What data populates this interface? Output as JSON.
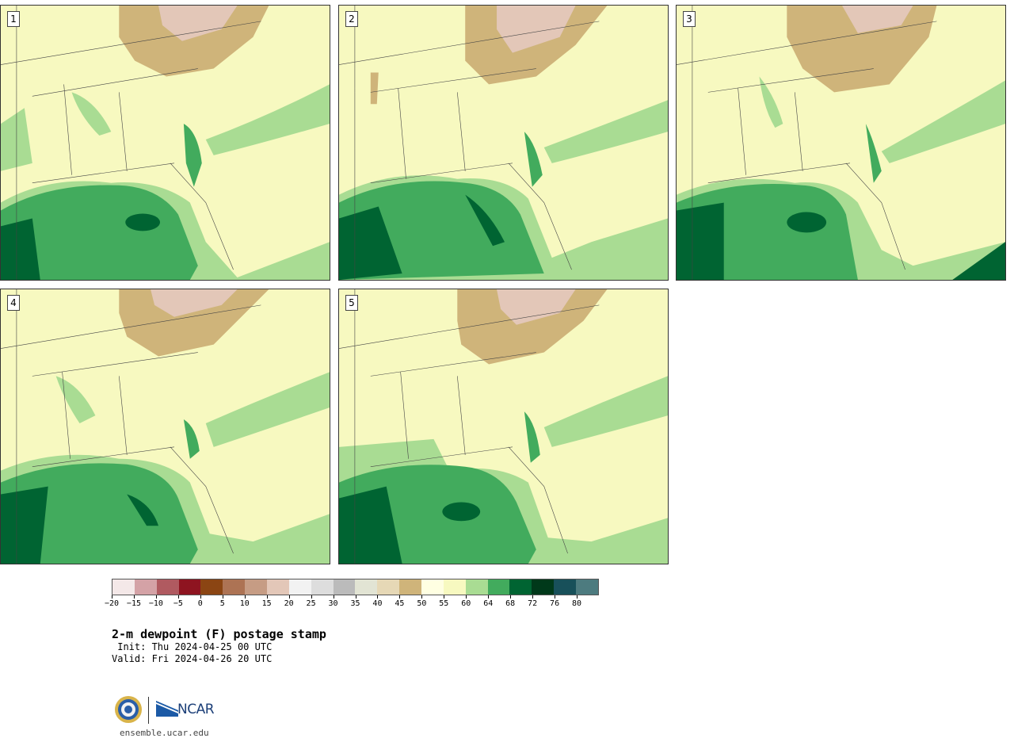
{
  "panels": [
    {
      "label": "1"
    },
    {
      "label": "2"
    },
    {
      "label": "3"
    },
    {
      "label": "4"
    },
    {
      "label": "5"
    }
  ],
  "colorbar": {
    "colors": [
      "#f4e8e8",
      "#d4a2a6",
      "#b05a60",
      "#8e1420",
      "#8b4513",
      "#ad7354",
      "#c69c84",
      "#e3c7b8",
      "#f2f2f2",
      "#dddddd",
      "#bbbbbb",
      "#e2e4d4",
      "#e6d8b6",
      "#cfb47a",
      "#ffffe2",
      "#f7f9c0",
      "#a9dc93",
      "#42ab5d",
      "#006432",
      "#00391a",
      "#18505a",
      "#4d7b7f"
    ],
    "tick_labels": [
      "−20",
      "−15",
      "−10",
      "−5",
      "0",
      "5",
      "10",
      "15",
      "20",
      "25",
      "30",
      "35",
      "40",
      "45",
      "50",
      "55",
      "60",
      "64",
      "68",
      "72",
      "76",
      "80"
    ]
  },
  "title": "2-m dewpoint (F) postage stamp",
  "init": " Init: Thu 2024-04-25 00 UTC",
  "valid": "Valid: Fri 2024-04-26 20 UTC",
  "logo": {
    "ncar": "NCAR"
  },
  "site": "ensemble.ucar.edu"
}
